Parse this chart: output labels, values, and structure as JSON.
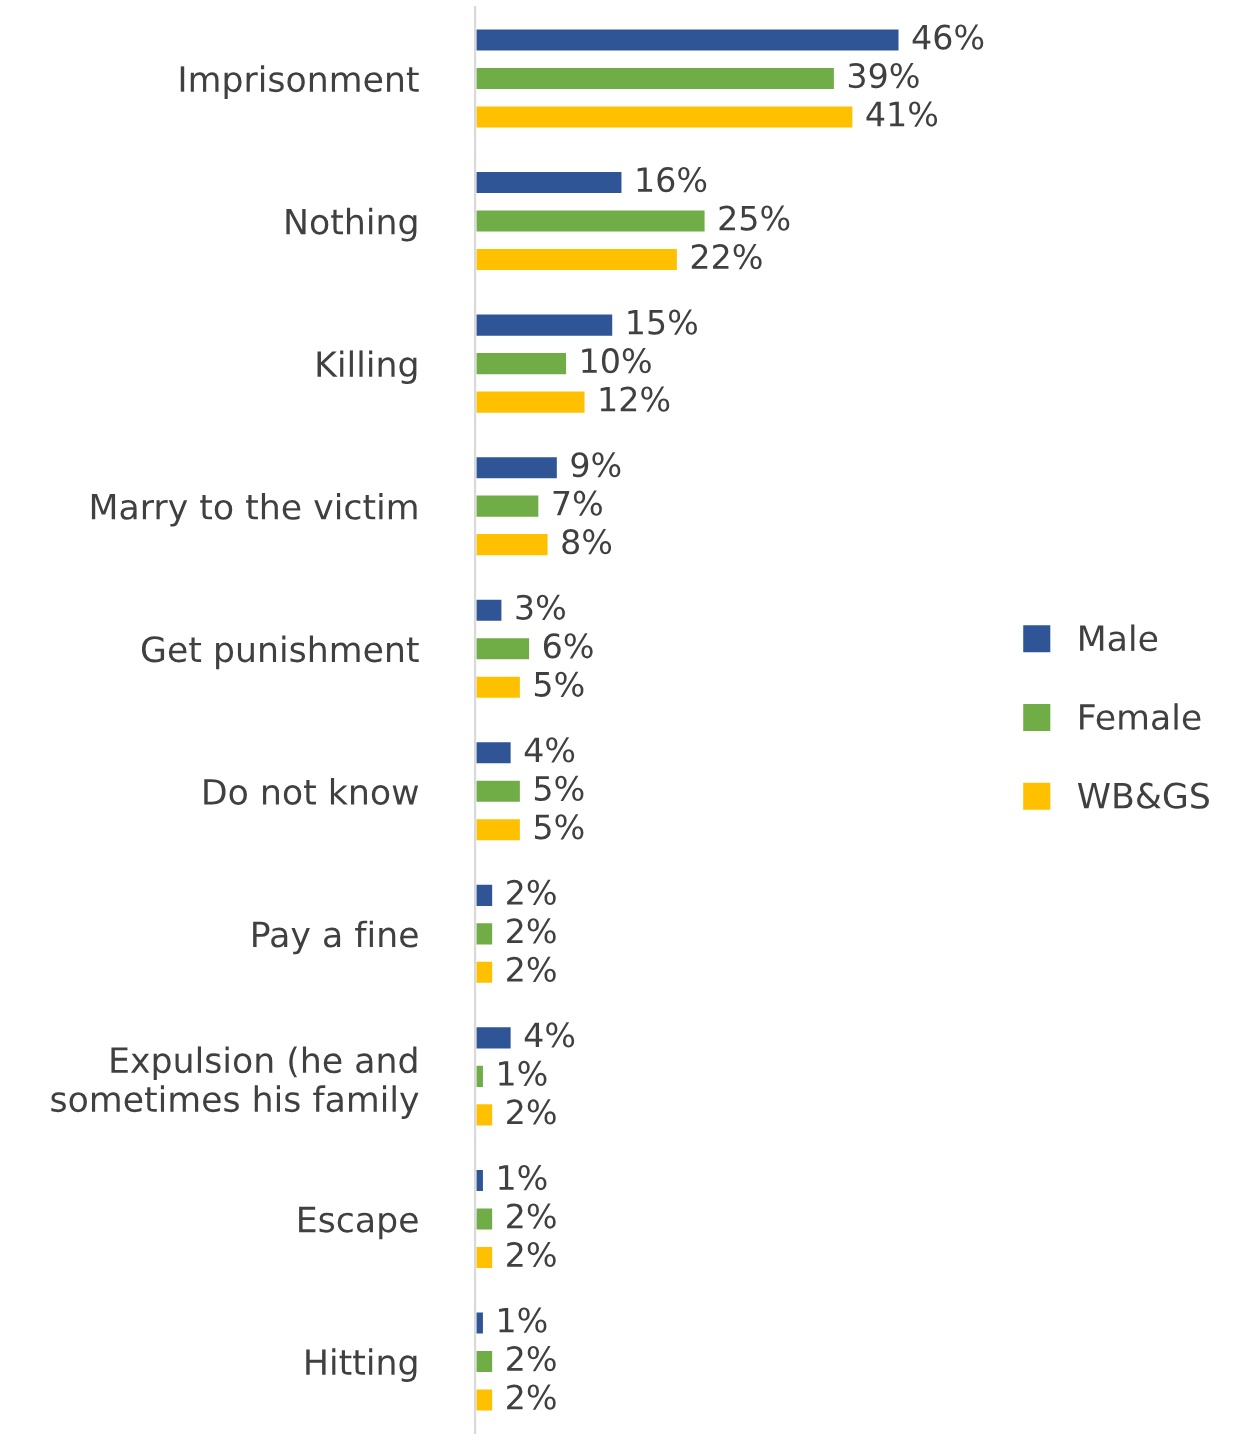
{
  "chart_data": {
    "type": "bar",
    "orientation": "horizontal",
    "categories": [
      "Imprisonment",
      "Nothing",
      "Killing",
      "Marry to the victim",
      "Get punishment",
      "Do not know",
      "Pay a fine",
      "Expulsion (he and\nsometimes his family",
      "Escape",
      "Hitting"
    ],
    "series": [
      {
        "name": "Male",
        "color": "#2f5597",
        "values": [
          46,
          16,
          15,
          9,
          3,
          4,
          2,
          4,
          1,
          1
        ],
        "value_labels": [
          "46%",
          "16%",
          "15%",
          "9%",
          "3%",
          "4%",
          "2%",
          "4%",
          "1%",
          "1%"
        ]
      },
      {
        "name": "Female",
        "color": "#70ad47",
        "values": [
          39,
          25,
          10,
          7,
          6,
          5,
          2,
          1,
          2,
          2
        ],
        "value_labels": [
          "39%",
          "25%",
          "10%",
          "7%",
          "6%",
          "5%",
          "2%",
          "1%",
          "2%",
          "2%"
        ]
      },
      {
        "name": "WB&GS",
        "color": "#ffc000",
        "values": [
          41,
          22,
          12,
          8,
          5,
          5,
          2,
          2,
          2,
          2
        ],
        "value_labels": [
          "41%",
          "22%",
          "12%",
          "8%",
          "5%",
          "5%",
          "2%",
          "2%",
          "2%",
          "2%"
        ]
      }
    ],
    "legend": "right",
    "grid": false
  }
}
